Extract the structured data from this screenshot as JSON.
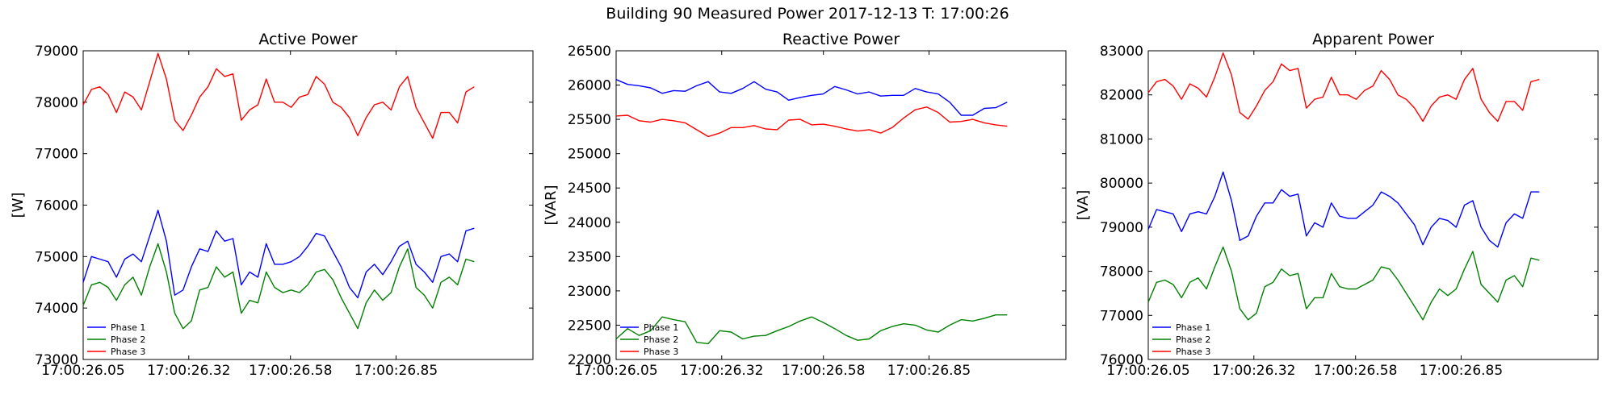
{
  "figure": {
    "suptitle": "Building 90 Measured Power 2017-12-13 T: 17:00:26"
  },
  "colors": {
    "phase1": "#0000ff",
    "phase2": "#008000",
    "phase3": "#ff0000"
  },
  "chart_data": [
    {
      "type": "line",
      "title": "Active Power",
      "xlabel": "",
      "ylabel": "[W]",
      "ylim": [
        73000,
        79000
      ],
      "yticks": [
        73000,
        74000,
        75000,
        76000,
        77000,
        78000,
        79000
      ],
      "xticks": [
        "17:00:26.05",
        "17:00:26.32",
        "17:00:26.58",
        "17:00:26.85"
      ],
      "xtick_positions": [
        0,
        0.27,
        0.53,
        0.8
      ],
      "xlim": [
        0,
        1.15
      ],
      "legend": "lower-left",
      "grid": false,
      "series": [
        {
          "name": "Phase 1",
          "color": "#0000ff",
          "values": [
            74500,
            75000,
            74950,
            74900,
            74600,
            74950,
            75050,
            74900,
            75400,
            75900,
            75300,
            74250,
            74350,
            74800,
            75150,
            75100,
            75500,
            75300,
            75350,
            74450,
            74700,
            74600,
            75250,
            74850,
            74850,
            74900,
            75000,
            75200,
            75450,
            75400,
            75100,
            74800,
            74400,
            74200,
            74700,
            74850,
            74650,
            74900,
            75200,
            75300,
            74850,
            74700,
            74500,
            75000,
            75050,
            74900,
            75500,
            75550
          ]
        },
        {
          "name": "Phase 2",
          "color": "#008000",
          "values": [
            74050,
            74450,
            74500,
            74400,
            74150,
            74450,
            74600,
            74250,
            74800,
            75250,
            74700,
            73900,
            73600,
            73750,
            74350,
            74400,
            74800,
            74600,
            74700,
            73900,
            74150,
            74100,
            74700,
            74400,
            74300,
            74350,
            74300,
            74450,
            74700,
            74750,
            74550,
            74200,
            73900,
            73600,
            74100,
            74350,
            74150,
            74300,
            74800,
            75150,
            74400,
            74250,
            74000,
            74500,
            74600,
            74450,
            74950,
            74900
          ]
        },
        {
          "name": "Phase 3",
          "color": "#ff0000",
          "values": [
            77950,
            78250,
            78300,
            78150,
            77800,
            78200,
            78100,
            77850,
            78400,
            78950,
            78450,
            77650,
            77450,
            77750,
            78100,
            78300,
            78650,
            78500,
            78550,
            77650,
            77850,
            77950,
            78450,
            78000,
            78000,
            77900,
            78100,
            78150,
            78500,
            78350,
            78000,
            77900,
            77700,
            77350,
            77700,
            77950,
            78000,
            77850,
            78300,
            78500,
            77900,
            77600,
            77300,
            77800,
            77800,
            77600,
            78200,
            78300
          ]
        }
      ]
    },
    {
      "type": "line",
      "title": "Reactive Power",
      "xlabel": "",
      "ylabel": "[VAR]",
      "ylim": [
        22000,
        26500
      ],
      "yticks": [
        22000,
        22500,
        23000,
        23500,
        24000,
        24500,
        25000,
        25500,
        26000,
        26500
      ],
      "xticks": [
        "17:00:26.05",
        "17:00:26.32",
        "17:00:26.58",
        "17:00:26.85"
      ],
      "xtick_positions": [
        0,
        0.27,
        0.53,
        0.8
      ],
      "xlim": [
        0,
        1.15
      ],
      "legend": "lower-left",
      "grid": false,
      "series": [
        {
          "name": "Phase 1",
          "color": "#0000ff",
          "values": [
            26080,
            26010,
            25990,
            25960,
            25880,
            25920,
            25910,
            25990,
            26050,
            25900,
            25880,
            25950,
            26050,
            25940,
            25900,
            25780,
            25820,
            25850,
            25870,
            25980,
            25930,
            25870,
            25900,
            25840,
            25850,
            25850,
            25950,
            25900,
            25870,
            25750,
            25560,
            25560,
            25660,
            25670,
            25750
          ]
        },
        {
          "name": "Phase 2",
          "color": "#008000",
          "values": [
            22300,
            22450,
            22350,
            22420,
            22620,
            22580,
            22550,
            22250,
            22230,
            22420,
            22400,
            22300,
            22340,
            22350,
            22420,
            22480,
            22560,
            22620,
            22540,
            22450,
            22350,
            22280,
            22300,
            22420,
            22480,
            22520,
            22500,
            22430,
            22400,
            22500,
            22580,
            22560,
            22600,
            22650,
            22650
          ]
        },
        {
          "name": "Phase 3",
          "color": "#ff0000",
          "values": [
            25550,
            25560,
            25480,
            25460,
            25500,
            25480,
            25450,
            25350,
            25250,
            25300,
            25380,
            25380,
            25410,
            25360,
            25350,
            25490,
            25500,
            25420,
            25430,
            25400,
            25360,
            25330,
            25350,
            25300,
            25380,
            25520,
            25640,
            25680,
            25600,
            25460,
            25470,
            25500,
            25450,
            25420,
            25400
          ]
        }
      ]
    },
    {
      "type": "line",
      "title": "Apparent Power",
      "xlabel": "",
      "ylabel": "[VA]",
      "ylim": [
        76000,
        83000
      ],
      "yticks": [
        76000,
        77000,
        78000,
        79000,
        80000,
        81000,
        82000,
        83000
      ],
      "xticks": [
        "17:00:26.05",
        "17:00:26.32",
        "17:00:26.58",
        "17:00:26.85"
      ],
      "xtick_positions": [
        0,
        0.27,
        0.53,
        0.8
      ],
      "xlim": [
        0,
        1.15
      ],
      "legend": "lower-left",
      "grid": false,
      "series": [
        {
          "name": "Phase 1",
          "color": "#0000ff",
          "values": [
            78950,
            79400,
            79350,
            79300,
            78900,
            79300,
            79350,
            79300,
            79700,
            80250,
            79600,
            78700,
            78800,
            79250,
            79550,
            79550,
            79850,
            79700,
            79750,
            78800,
            79100,
            79000,
            79550,
            79250,
            79200,
            79200,
            79350,
            79500,
            79800,
            79700,
            79550,
            79300,
            79050,
            78600,
            79000,
            79200,
            79150,
            79000,
            79500,
            79600,
            79000,
            78700,
            78550,
            79100,
            79300,
            79200,
            79800,
            79800
          ]
        },
        {
          "name": "Phase 2",
          "color": "#008000",
          "values": [
            77300,
            77750,
            77800,
            77700,
            77400,
            77750,
            77850,
            77600,
            78100,
            78550,
            78000,
            77150,
            76900,
            77050,
            77650,
            77750,
            78050,
            77900,
            77950,
            77150,
            77400,
            77400,
            77950,
            77650,
            77600,
            77600,
            77700,
            77800,
            78100,
            78050,
            77800,
            77500,
            77200,
            76900,
            77300,
            77600,
            77450,
            77600,
            78050,
            78450,
            77700,
            77500,
            77300,
            77800,
            77900,
            77650,
            78300,
            78250
          ]
        },
        {
          "name": "Phase 3",
          "color": "#ff0000",
          "values": [
            82050,
            82300,
            82350,
            82200,
            81900,
            82250,
            82150,
            81950,
            82400,
            82950,
            82450,
            81600,
            81450,
            81750,
            82100,
            82300,
            82700,
            82550,
            82600,
            81700,
            81900,
            81950,
            82400,
            82000,
            82000,
            81900,
            82100,
            82200,
            82550,
            82350,
            82000,
            81900,
            81700,
            81400,
            81750,
            81950,
            82000,
            81900,
            82350,
            82600,
            81900,
            81600,
            81400,
            81850,
            81850,
            81650,
            82300,
            82350
          ]
        }
      ]
    }
  ]
}
